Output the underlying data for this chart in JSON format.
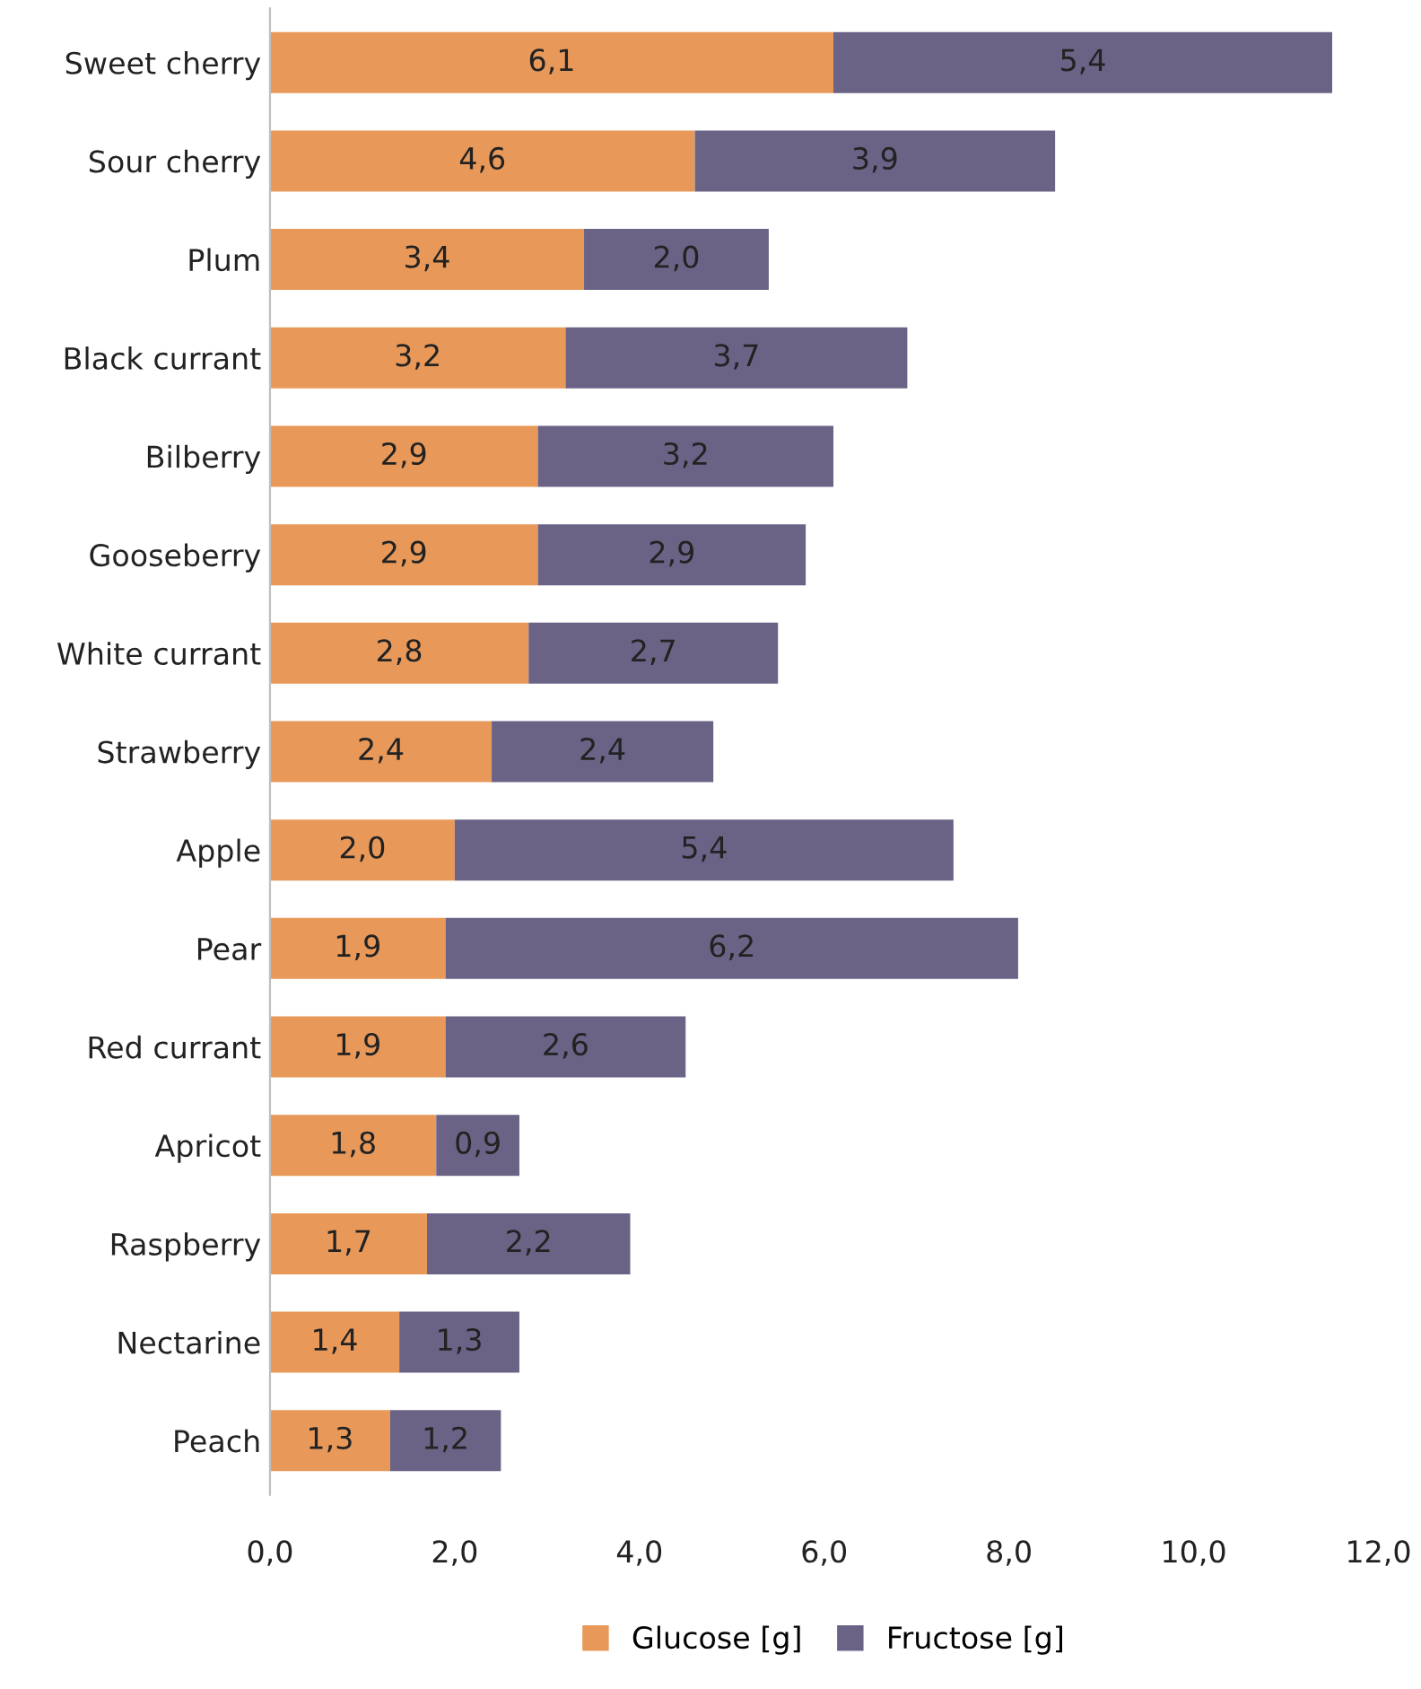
{
  "chart_data": {
    "type": "bar",
    "orientation": "horizontal",
    "stacked": true,
    "categories": [
      "Sweet cherry",
      "Sour cherry",
      "Plum",
      "Black currant",
      "Bilberry",
      "Gooseberry",
      "White currant",
      "Strawberry",
      "Apple",
      "Pear",
      "Red currant",
      "Apricot",
      "Raspberry",
      "Nectarine",
      "Peach"
    ],
    "series": [
      {
        "name": "Glucose [g]",
        "color": "#e8995a",
        "values": [
          6.1,
          4.6,
          3.4,
          3.2,
          2.9,
          2.9,
          2.8,
          2.4,
          2.0,
          1.9,
          1.9,
          1.8,
          1.7,
          1.4,
          1.3
        ],
        "value_labels": [
          "6,1",
          "4,6",
          "3,4",
          "3,2",
          "2,9",
          "2,9",
          "2,8",
          "2,4",
          "2,0",
          "1,9",
          "1,9",
          "1,8",
          "1,7",
          "1,4",
          "1,3"
        ]
      },
      {
        "name": "Fructose [g]",
        "color": "#6b6386",
        "values": [
          5.4,
          3.9,
          2.0,
          3.7,
          3.2,
          2.9,
          2.7,
          2.4,
          5.4,
          6.2,
          2.6,
          0.9,
          2.2,
          1.3,
          1.2
        ],
        "value_labels": [
          "5,4",
          "3,9",
          "2,0",
          "3,7",
          "3,2",
          "2,9",
          "2,7",
          "2,4",
          "5,4",
          "6,2",
          "2,6",
          "0,9",
          "2,2",
          "1,3",
          "1,2"
        ]
      }
    ],
    "xlim": [
      0,
      12
    ],
    "xticks": [
      {
        "value": 0,
        "label": "0,0"
      },
      {
        "value": 2,
        "label": "2,0"
      },
      {
        "value": 4,
        "label": "4,0"
      },
      {
        "value": 6,
        "label": "6,0"
      },
      {
        "value": 8,
        "label": "8,0"
      },
      {
        "value": 10,
        "label": "10,0"
      },
      {
        "value": 12,
        "label": "12,0"
      }
    ],
    "grid": false,
    "legend": "bottom"
  }
}
